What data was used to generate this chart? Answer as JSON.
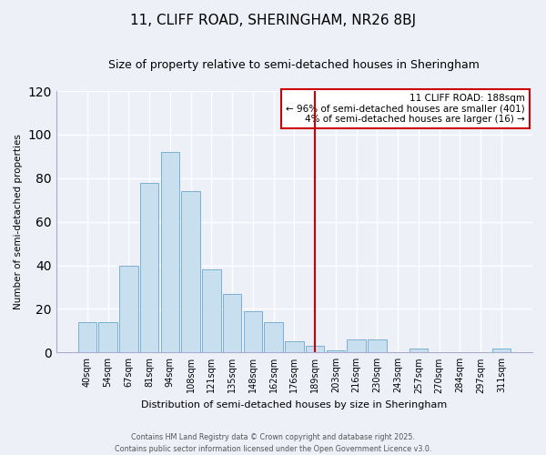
{
  "title": "11, CLIFF ROAD, SHERINGHAM, NR26 8BJ",
  "subtitle": "Size of property relative to semi-detached houses in Sheringham",
  "bar_labels": [
    "40sqm",
    "54sqm",
    "67sqm",
    "81sqm",
    "94sqm",
    "108sqm",
    "121sqm",
    "135sqm",
    "148sqm",
    "162sqm",
    "176sqm",
    "189sqm",
    "203sqm",
    "216sqm",
    "230sqm",
    "243sqm",
    "257sqm",
    "270sqm",
    "284sqm",
    "297sqm",
    "311sqm"
  ],
  "bar_values": [
    14,
    14,
    40,
    78,
    92,
    74,
    38,
    27,
    19,
    14,
    5,
    3,
    1,
    6,
    6,
    0,
    2,
    0,
    0,
    0,
    2
  ],
  "bar_color": "#c8dff0",
  "bar_edge_color": "#7ab0d4",
  "vline_x_index": 11,
  "vline_color": "#cc0000",
  "ylabel": "Number of semi-detached properties",
  "xlabel": "Distribution of semi-detached houses by size in Sheringham",
  "ylim": [
    0,
    120
  ],
  "yticks": [
    0,
    20,
    40,
    60,
    80,
    100,
    120
  ],
  "annotation_title": "11 CLIFF ROAD: 188sqm",
  "annotation_line1": "← 96% of semi-detached houses are smaller (401)",
  "annotation_line2": "4% of semi-detached houses are larger (16) →",
  "annotation_box_facecolor": "#ffffff",
  "annotation_box_edgecolor": "#cc0000",
  "footer1": "Contains HM Land Registry data © Crown copyright and database right 2025.",
  "footer2": "Contains public sector information licensed under the Open Government Licence v3.0.",
  "background_color": "#eef0f8",
  "grid_color": "#ffffff",
  "title_fontsize": 11,
  "subtitle_fontsize": 9
}
